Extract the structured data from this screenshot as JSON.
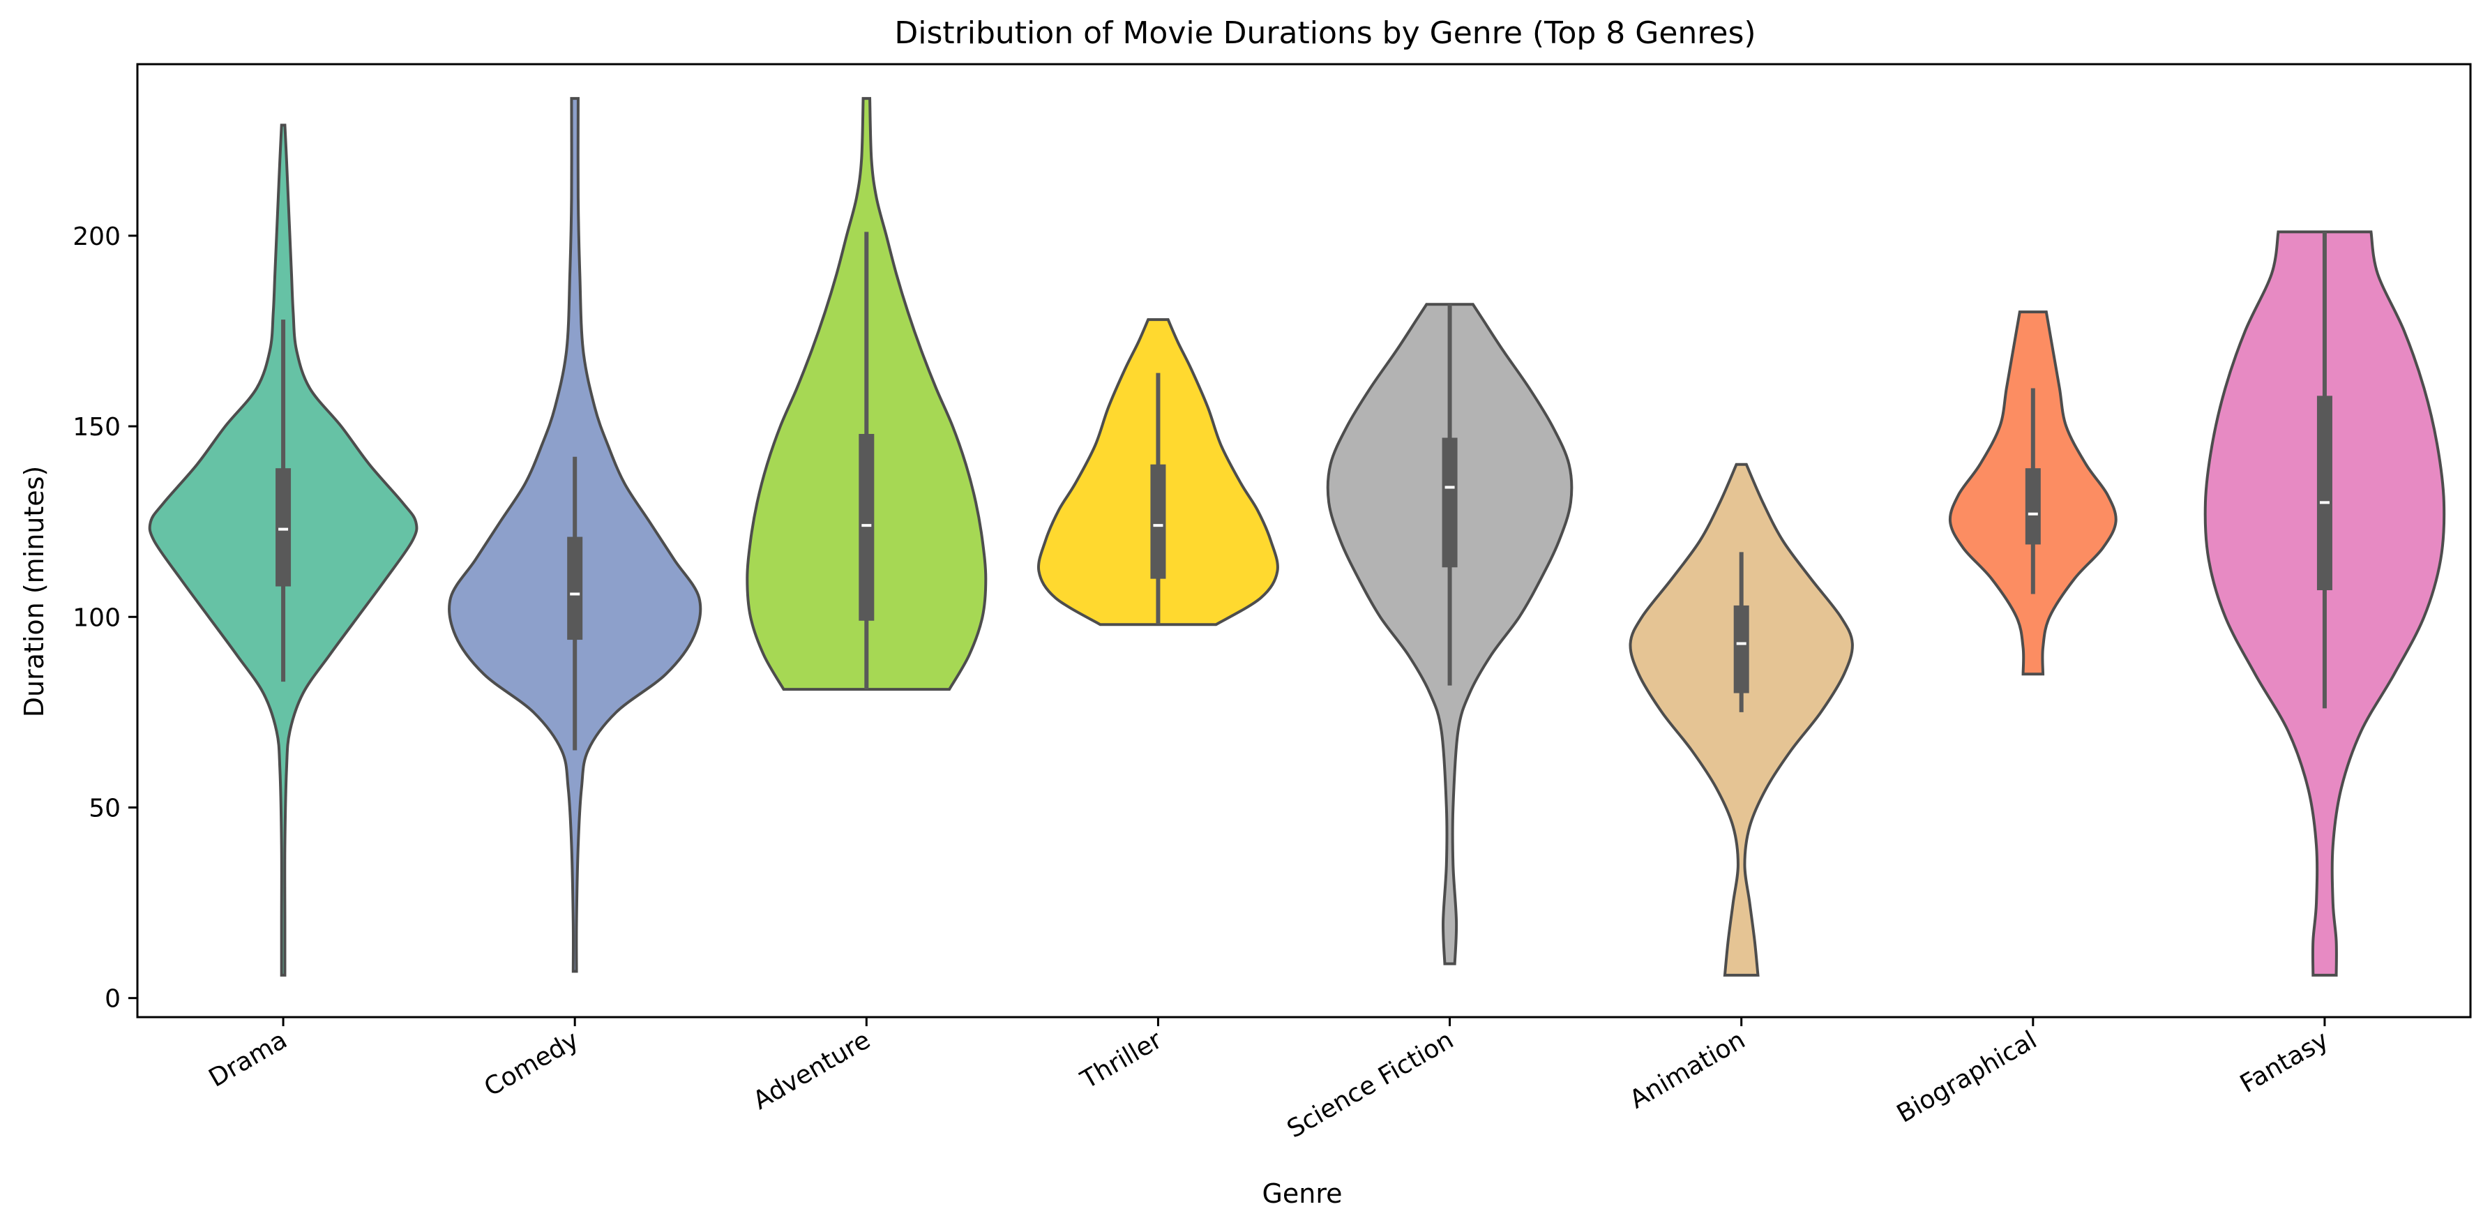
{
  "chart_data": {
    "type": "violin",
    "title": "Distribution of Movie Durations by Genre (Top 8 Genres)",
    "xlabel": "Genre",
    "ylabel": "Duration (minutes)",
    "ylim": [
      -5,
      245
    ],
    "yticks": [
      0,
      50,
      100,
      150,
      200
    ],
    "grid": false,
    "legend": "none",
    "categories": [
      "Drama",
      "Comedy",
      "Adventure",
      "Thriller",
      "Science Fiction",
      "Animation",
      "Biographical",
      "Fantasy"
    ],
    "series": [
      {
        "genre": "Drama",
        "color": "#66c2a5",
        "min": 6,
        "max": 229,
        "q1": 108,
        "median": 123,
        "q3": 139,
        "whisker_low": 83,
        "whisker_high": 178,
        "density": [
          [
            6,
            0.01
          ],
          [
            20,
            0.01
          ],
          [
            40,
            0.01
          ],
          [
            60,
            0.02
          ],
          [
            70,
            0.04
          ],
          [
            80,
            0.12
          ],
          [
            90,
            0.28
          ],
          [
            100,
            0.45
          ],
          [
            110,
            0.62
          ],
          [
            120,
            0.78
          ],
          [
            125,
            0.8
          ],
          [
            130,
            0.72
          ],
          [
            140,
            0.52
          ],
          [
            150,
            0.35
          ],
          [
            160,
            0.16
          ],
          [
            170,
            0.08
          ],
          [
            180,
            0.06
          ],
          [
            190,
            0.05
          ],
          [
            200,
            0.04
          ],
          [
            210,
            0.03
          ],
          [
            220,
            0.02
          ],
          [
            229,
            0.01
          ]
        ]
      },
      {
        "genre": "Comedy",
        "color": "#8da0cb",
        "min": 7,
        "max": 236,
        "q1": 94,
        "median": 106,
        "q3": 121,
        "whisker_low": 65,
        "whisker_high": 142,
        "density": [
          [
            7,
            0.01
          ],
          [
            20,
            0.01
          ],
          [
            40,
            0.02
          ],
          [
            55,
            0.04
          ],
          [
            65,
            0.08
          ],
          [
            75,
            0.25
          ],
          [
            85,
            0.55
          ],
          [
            95,
            0.72
          ],
          [
            105,
            0.75
          ],
          [
            115,
            0.6
          ],
          [
            125,
            0.45
          ],
          [
            135,
            0.3
          ],
          [
            145,
            0.2
          ],
          [
            155,
            0.12
          ],
          [
            170,
            0.05
          ],
          [
            190,
            0.03
          ],
          [
            210,
            0.02
          ],
          [
            236,
            0.02
          ]
        ]
      },
      {
        "genre": "Adventure",
        "color": "#a6d854",
        "min": 81,
        "max": 236,
        "q1": 99,
        "median": 124,
        "q3": 148,
        "whisker_low": 81,
        "whisker_high": 201,
        "density": [
          [
            81,
            0.5
          ],
          [
            90,
            0.62
          ],
          [
            100,
            0.7
          ],
          [
            110,
            0.72
          ],
          [
            120,
            0.7
          ],
          [
            130,
            0.66
          ],
          [
            140,
            0.6
          ],
          [
            150,
            0.52
          ],
          [
            160,
            0.42
          ],
          [
            170,
            0.33
          ],
          [
            180,
            0.25
          ],
          [
            190,
            0.18
          ],
          [
            200,
            0.12
          ],
          [
            210,
            0.06
          ],
          [
            220,
            0.03
          ],
          [
            236,
            0.02
          ]
        ]
      },
      {
        "genre": "Thriller",
        "color": "#ffd92f",
        "min": 98,
        "max": 178,
        "q1": 110,
        "median": 124,
        "q3": 140,
        "whisker_low": 98,
        "whisker_high": 164,
        "density": [
          [
            98,
            0.35
          ],
          [
            105,
            0.62
          ],
          [
            112,
            0.72
          ],
          [
            120,
            0.68
          ],
          [
            128,
            0.6
          ],
          [
            135,
            0.5
          ],
          [
            145,
            0.38
          ],
          [
            155,
            0.3
          ],
          [
            165,
            0.2
          ],
          [
            172,
            0.12
          ],
          [
            178,
            0.06
          ]
        ]
      },
      {
        "genre": "Science Fiction",
        "color": "#b3b3b3",
        "min": 9,
        "max": 182,
        "q1": 113,
        "median": 134,
        "q3": 147,
        "whisker_low": 82,
        "whisker_high": 182,
        "density": [
          [
            9,
            0.03
          ],
          [
            20,
            0.04
          ],
          [
            35,
            0.02
          ],
          [
            50,
            0.02
          ],
          [
            70,
            0.05
          ],
          [
            80,
            0.12
          ],
          [
            90,
            0.25
          ],
          [
            100,
            0.42
          ],
          [
            110,
            0.55
          ],
          [
            120,
            0.66
          ],
          [
            130,
            0.73
          ],
          [
            140,
            0.72
          ],
          [
            150,
            0.62
          ],
          [
            160,
            0.48
          ],
          [
            170,
            0.32
          ],
          [
            178,
            0.2
          ],
          [
            182,
            0.14
          ]
        ]
      },
      {
        "genre": "Animation",
        "color": "#e5c494",
        "min": 6,
        "max": 140,
        "q1": 80,
        "median": 93,
        "q3": 103,
        "whisker_low": 75,
        "whisker_high": 117,
        "density": [
          [
            6,
            0.1
          ],
          [
            15,
            0.08
          ],
          [
            25,
            0.05
          ],
          [
            35,
            0.02
          ],
          [
            45,
            0.05
          ],
          [
            55,
            0.15
          ],
          [
            65,
            0.3
          ],
          [
            75,
            0.48
          ],
          [
            85,
            0.62
          ],
          [
            93,
            0.67
          ],
          [
            100,
            0.6
          ],
          [
            110,
            0.42
          ],
          [
            120,
            0.25
          ],
          [
            130,
            0.13
          ],
          [
            140,
            0.03
          ]
        ]
      },
      {
        "genre": "Biographical",
        "color": "#fc8d62",
        "min": 85,
        "max": 180,
        "q1": 119,
        "median": 127,
        "q3": 139,
        "whisker_low": 106,
        "whisker_high": 160,
        "density": [
          [
            85,
            0.06
          ],
          [
            92,
            0.06
          ],
          [
            100,
            0.1
          ],
          [
            110,
            0.25
          ],
          [
            118,
            0.42
          ],
          [
            125,
            0.5
          ],
          [
            132,
            0.45
          ],
          [
            140,
            0.32
          ],
          [
            150,
            0.2
          ],
          [
            160,
            0.16
          ],
          [
            170,
            0.12
          ],
          [
            180,
            0.08
          ]
        ]
      },
      {
        "genre": "Fantasy",
        "color": "#e78ac3",
        "min": 6,
        "max": 201,
        "q1": 107,
        "median": 130,
        "q3": 158,
        "whisker_low": 76,
        "whisker_high": 201,
        "density": [
          [
            6,
            0.07
          ],
          [
            15,
            0.07
          ],
          [
            25,
            0.05
          ],
          [
            40,
            0.05
          ],
          [
            55,
            0.1
          ],
          [
            70,
            0.22
          ],
          [
            85,
            0.42
          ],
          [
            100,
            0.6
          ],
          [
            115,
            0.7
          ],
          [
            130,
            0.72
          ],
          [
            145,
            0.68
          ],
          [
            160,
            0.6
          ],
          [
            175,
            0.48
          ],
          [
            190,
            0.32
          ],
          [
            201,
            0.28
          ]
        ]
      }
    ]
  }
}
